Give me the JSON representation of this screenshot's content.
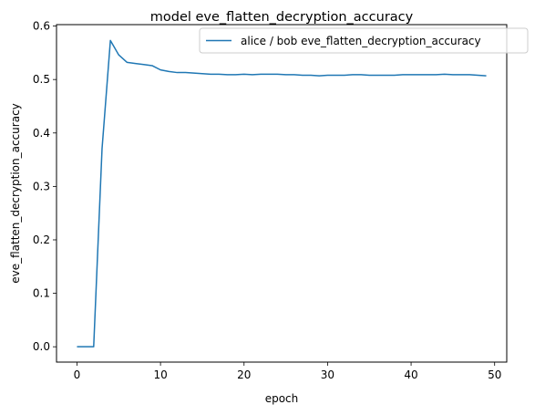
{
  "chart_data": {
    "type": "line",
    "title": "model eve_flatten_decryption_accuracy",
    "xlabel": "epoch",
    "ylabel": "eve_flatten_decryption_accuracy",
    "xlim": [
      -2.45,
      51.45
    ],
    "ylim": [
      -0.0287,
      0.6027
    ],
    "xticks": [
      0,
      10,
      20,
      30,
      40,
      50
    ],
    "xtick_labels": [
      "0",
      "10",
      "20",
      "30",
      "40",
      "50"
    ],
    "yticks": [
      0.0,
      0.1,
      0.2,
      0.3,
      0.4,
      0.5,
      0.6
    ],
    "ytick_labels": [
      "0.0",
      "0.1",
      "0.2",
      "0.3",
      "0.4",
      "0.5",
      "0.6"
    ],
    "grid": false,
    "legend_position": "top-right",
    "series": [
      {
        "name": "alice / bob eve_flatten_decryption_accuracy",
        "color": "#1f77b4",
        "x": [
          0,
          1,
          2,
          3,
          4,
          5,
          6,
          7,
          8,
          9,
          10,
          11,
          12,
          13,
          14,
          15,
          16,
          17,
          18,
          19,
          20,
          21,
          22,
          23,
          24,
          25,
          26,
          27,
          28,
          29,
          30,
          31,
          32,
          33,
          34,
          35,
          36,
          37,
          38,
          39,
          40,
          41,
          42,
          43,
          44,
          45,
          46,
          47,
          48,
          49
        ],
        "y": [
          0.0,
          0.0,
          0.0,
          0.37,
          0.573,
          0.546,
          0.532,
          0.53,
          0.528,
          0.526,
          0.518,
          0.515,
          0.513,
          0.513,
          0.512,
          0.511,
          0.51,
          0.51,
          0.509,
          0.509,
          0.51,
          0.509,
          0.51,
          0.51,
          0.51,
          0.509,
          0.509,
          0.508,
          0.508,
          0.507,
          0.508,
          0.508,
          0.508,
          0.509,
          0.509,
          0.508,
          0.508,
          0.508,
          0.508,
          0.509,
          0.509,
          0.509,
          0.509,
          0.509,
          0.51,
          0.509,
          0.509,
          0.509,
          0.508,
          0.507
        ]
      }
    ]
  }
}
